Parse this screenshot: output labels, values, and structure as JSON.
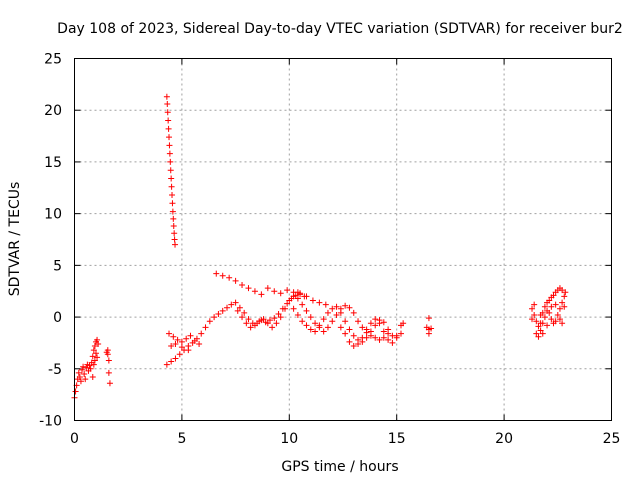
{
  "chart_data": {
    "type": "scatter",
    "title": "Day 108 of 2023, Sidereal Day-to-day VTEC variation (SDTVAR) for receiver bur2",
    "xlabel": "GPS time / hours",
    "ylabel": "SDTVAR / TECUs",
    "xlim": [
      0,
      25
    ],
    "ylim": [
      -10,
      25
    ],
    "xticks": [
      "0",
      "5",
      "10",
      "15",
      "20",
      "25"
    ],
    "yticks": [
      "-10",
      "-5",
      "0",
      "5",
      "10",
      "15",
      "20",
      "25"
    ],
    "grid": true,
    "marker": "+",
    "color": "#ff0000",
    "series": [
      {
        "name": "SDTVAR",
        "points": [
          [
            0.0,
            -7.8
          ],
          [
            0.05,
            -7.2
          ],
          [
            0.1,
            -6.6
          ],
          [
            0.15,
            -6.0
          ],
          [
            0.2,
            -5.4
          ],
          [
            0.25,
            -5.8
          ],
          [
            0.3,
            -6.2
          ],
          [
            0.35,
            -5.1
          ],
          [
            0.4,
            -4.8
          ],
          [
            0.45,
            -5.5
          ],
          [
            0.5,
            -6.0
          ],
          [
            0.55,
            -4.9
          ],
          [
            0.6,
            -4.6
          ],
          [
            0.65,
            -5.2
          ],
          [
            0.7,
            -4.7
          ],
          [
            0.75,
            -5.0
          ],
          [
            0.8,
            -4.4
          ],
          [
            0.85,
            -3.8
          ],
          [
            0.9,
            -3.2
          ],
          [
            0.95,
            -2.8
          ],
          [
            1.0,
            -2.4
          ],
          [
            1.05,
            -2.2
          ],
          [
            1.1,
            -2.6
          ],
          [
            1.0,
            -3.5
          ],
          [
            0.95,
            -4.2
          ],
          [
            1.05,
            -3.9
          ],
          [
            0.85,
            -5.8
          ],
          [
            0.9,
            -4.6
          ],
          [
            1.55,
            -3.2
          ],
          [
            1.55,
            -3.6
          ],
          [
            1.6,
            -4.2
          ],
          [
            1.6,
            -5.4
          ],
          [
            1.65,
            -6.4
          ],
          [
            1.5,
            -3.4
          ],
          [
            4.3,
            21.3
          ],
          [
            4.32,
            20.6
          ],
          [
            4.34,
            19.8
          ],
          [
            4.36,
            19.0
          ],
          [
            4.38,
            18.2
          ],
          [
            4.4,
            17.4
          ],
          [
            4.42,
            16.6
          ],
          [
            4.44,
            15.8
          ],
          [
            4.46,
            15.0
          ],
          [
            4.48,
            14.2
          ],
          [
            4.5,
            13.4
          ],
          [
            4.52,
            12.6
          ],
          [
            4.54,
            11.8
          ],
          [
            4.56,
            11.0
          ],
          [
            4.58,
            10.2
          ],
          [
            4.6,
            9.5
          ],
          [
            4.62,
            8.8
          ],
          [
            4.64,
            8.1
          ],
          [
            4.66,
            7.5
          ],
          [
            4.68,
            7.0
          ],
          [
            4.3,
            -4.6
          ],
          [
            4.5,
            -4.3
          ],
          [
            4.7,
            -4.0
          ],
          [
            4.9,
            -3.6
          ],
          [
            5.1,
            -3.2
          ],
          [
            5.3,
            -2.8
          ],
          [
            5.5,
            -2.5
          ],
          [
            5.7,
            -2.1
          ],
          [
            5.9,
            -1.6
          ],
          [
            6.1,
            -1.0
          ],
          [
            6.3,
            -0.4
          ],
          [
            6.5,
            0.0
          ],
          [
            6.7,
            0.3
          ],
          [
            6.9,
            0.6
          ],
          [
            7.1,
            0.9
          ],
          [
            7.3,
            1.2
          ],
          [
            7.5,
            1.4
          ],
          [
            7.7,
            0.9
          ],
          [
            7.9,
            0.4
          ],
          [
            8.1,
            -0.2
          ],
          [
            8.3,
            -0.6
          ],
          [
            8.5,
            -0.6
          ],
          [
            8.7,
            -0.3
          ],
          [
            8.9,
            -0.5
          ],
          [
            9.1,
            -0.3
          ],
          [
            9.3,
            -0.1
          ],
          [
            9.5,
            0.3
          ],
          [
            9.7,
            0.8
          ],
          [
            9.9,
            1.3
          ],
          [
            10.1,
            1.8
          ],
          [
            10.3,
            2.1
          ],
          [
            10.5,
            2.3
          ],
          [
            10.7,
            2.0
          ],
          [
            4.4,
            -1.6
          ],
          [
            4.6,
            -1.9
          ],
          [
            4.8,
            -2.2
          ],
          [
            5.0,
            -2.4
          ],
          [
            5.2,
            -2.1
          ],
          [
            5.4,
            -1.8
          ],
          [
            5.6,
            -2.3
          ],
          [
            5.8,
            -2.6
          ],
          [
            5.3,
            -3.2
          ],
          [
            5.0,
            -2.9
          ],
          [
            4.7,
            -2.6
          ],
          [
            4.5,
            -2.8
          ],
          [
            6.6,
            4.2
          ],
          [
            6.9,
            4.0
          ],
          [
            7.2,
            3.8
          ],
          [
            7.5,
            3.5
          ],
          [
            7.8,
            3.1
          ],
          [
            8.1,
            2.8
          ],
          [
            8.4,
            2.5
          ],
          [
            8.7,
            2.2
          ],
          [
            9.0,
            2.8
          ],
          [
            9.3,
            2.5
          ],
          [
            9.6,
            2.3
          ],
          [
            9.9,
            2.6
          ],
          [
            10.2,
            2.4
          ],
          [
            10.5,
            2.2
          ],
          [
            10.8,
            2.0
          ],
          [
            11.1,
            1.6
          ],
          [
            11.4,
            1.4
          ],
          [
            11.7,
            1.2
          ],
          [
            7.6,
            0.6
          ],
          [
            7.8,
            0.0
          ],
          [
            8.0,
            -0.6
          ],
          [
            8.2,
            -1.0
          ],
          [
            8.4,
            -0.8
          ],
          [
            8.6,
            -0.4
          ],
          [
            8.8,
            -0.2
          ],
          [
            9.0,
            -0.6
          ],
          [
            9.2,
            -1.0
          ],
          [
            9.4,
            -0.6
          ],
          [
            9.6,
            0.0
          ],
          [
            9.8,
            0.8
          ],
          [
            10.0,
            1.6
          ],
          [
            10.2,
            2.0
          ],
          [
            10.4,
            2.4
          ],
          [
            10.4,
            1.8
          ],
          [
            10.6,
            1.2
          ],
          [
            10.8,
            0.6
          ],
          [
            11.0,
            0.0
          ],
          [
            11.2,
            -0.6
          ],
          [
            11.4,
            -1.0
          ],
          [
            11.6,
            -1.4
          ],
          [
            11.8,
            -1.0
          ],
          [
            12.0,
            -0.4
          ],
          [
            12.2,
            0.2
          ],
          [
            12.4,
            0.8
          ],
          [
            12.6,
            1.1
          ],
          [
            12.8,
            0.9
          ],
          [
            13.0,
            0.4
          ],
          [
            13.2,
            -0.4
          ],
          [
            13.4,
            -1.0
          ],
          [
            13.6,
            -1.5
          ],
          [
            13.8,
            -1.8
          ],
          [
            14.0,
            -2.0
          ],
          [
            14.2,
            -2.2
          ],
          [
            14.4,
            -2.0
          ],
          [
            14.6,
            -1.6
          ],
          [
            10.2,
            0.8
          ],
          [
            10.4,
            0.2
          ],
          [
            10.6,
            -0.4
          ],
          [
            10.8,
            -0.8
          ],
          [
            11.0,
            -1.2
          ],
          [
            11.2,
            -1.4
          ],
          [
            11.4,
            -0.8
          ],
          [
            11.6,
            -0.2
          ],
          [
            11.8,
            0.4
          ],
          [
            12.0,
            0.8
          ],
          [
            12.2,
            1.0
          ],
          [
            12.4,
            0.4
          ],
          [
            12.6,
            -0.4
          ],
          [
            12.8,
            -1.2
          ],
          [
            13.0,
            -1.8
          ],
          [
            13.2,
            -2.2
          ],
          [
            13.4,
            -2.4
          ],
          [
            13.6,
            -2.0
          ],
          [
            13.8,
            -1.4
          ],
          [
            14.0,
            -0.8
          ],
          [
            14.2,
            -0.3
          ],
          [
            14.4,
            -0.5
          ],
          [
            14.6,
            -1.2
          ],
          [
            14.8,
            -1.8
          ],
          [
            15.0,
            -2.0
          ],
          [
            15.2,
            -1.6
          ],
          [
            15.3,
            -0.6
          ],
          [
            12.4,
            -1.0
          ],
          [
            12.6,
            -1.6
          ],
          [
            12.8,
            -2.4
          ],
          [
            13.0,
            -2.8
          ],
          [
            13.2,
            -2.6
          ],
          [
            13.4,
            -2.0
          ],
          [
            13.6,
            -1.2
          ],
          [
            13.8,
            -0.6
          ],
          [
            14.0,
            -0.2
          ],
          [
            14.2,
            -0.6
          ],
          [
            14.4,
            -1.4
          ],
          [
            14.6,
            -2.2
          ],
          [
            14.8,
            -2.5
          ],
          [
            15.0,
            -1.8
          ],
          [
            15.2,
            -0.8
          ],
          [
            16.5,
            -0.1
          ],
          [
            16.5,
            -1.2
          ],
          [
            16.5,
            -1.6
          ],
          [
            16.4,
            -1.0
          ],
          [
            16.6,
            -1.1
          ],
          [
            21.3,
            0.8
          ],
          [
            21.4,
            0.2
          ],
          [
            21.5,
            -0.4
          ],
          [
            21.6,
            -0.9
          ],
          [
            21.7,
            -1.3
          ],
          [
            21.8,
            -1.6
          ],
          [
            21.5,
            -1.6
          ],
          [
            21.6,
            -1.9
          ],
          [
            21.7,
            -0.6
          ],
          [
            21.8,
            0.4
          ],
          [
            21.9,
            1.0
          ],
          [
            22.0,
            1.4
          ],
          [
            22.1,
            1.6
          ],
          [
            22.2,
            1.9
          ],
          [
            22.3,
            2.1
          ],
          [
            22.4,
            2.4
          ],
          [
            22.5,
            2.6
          ],
          [
            22.6,
            2.8
          ],
          [
            22.7,
            2.6
          ],
          [
            22.8,
            2.0
          ],
          [
            22.7,
            1.4
          ],
          [
            22.6,
            0.8
          ],
          [
            22.5,
            0.2
          ],
          [
            22.4,
            -0.4
          ],
          [
            22.3,
            -0.6
          ],
          [
            22.2,
            -0.2
          ],
          [
            22.1,
            0.4
          ],
          [
            22.0,
            0.6
          ],
          [
            21.9,
            0.0
          ],
          [
            21.8,
            -0.6
          ],
          [
            21.4,
            1.2
          ],
          [
            21.3,
            -0.2
          ],
          [
            22.8,
            1.0
          ],
          [
            22.7,
            -0.6
          ],
          [
            22.6,
            -0.2
          ],
          [
            22.85,
            2.4
          ],
          [
            22.4,
            1.2
          ],
          [
            22.2,
            1.0
          ],
          [
            22.0,
            -0.8
          ],
          [
            21.7,
            0.2
          ]
        ]
      }
    ]
  }
}
